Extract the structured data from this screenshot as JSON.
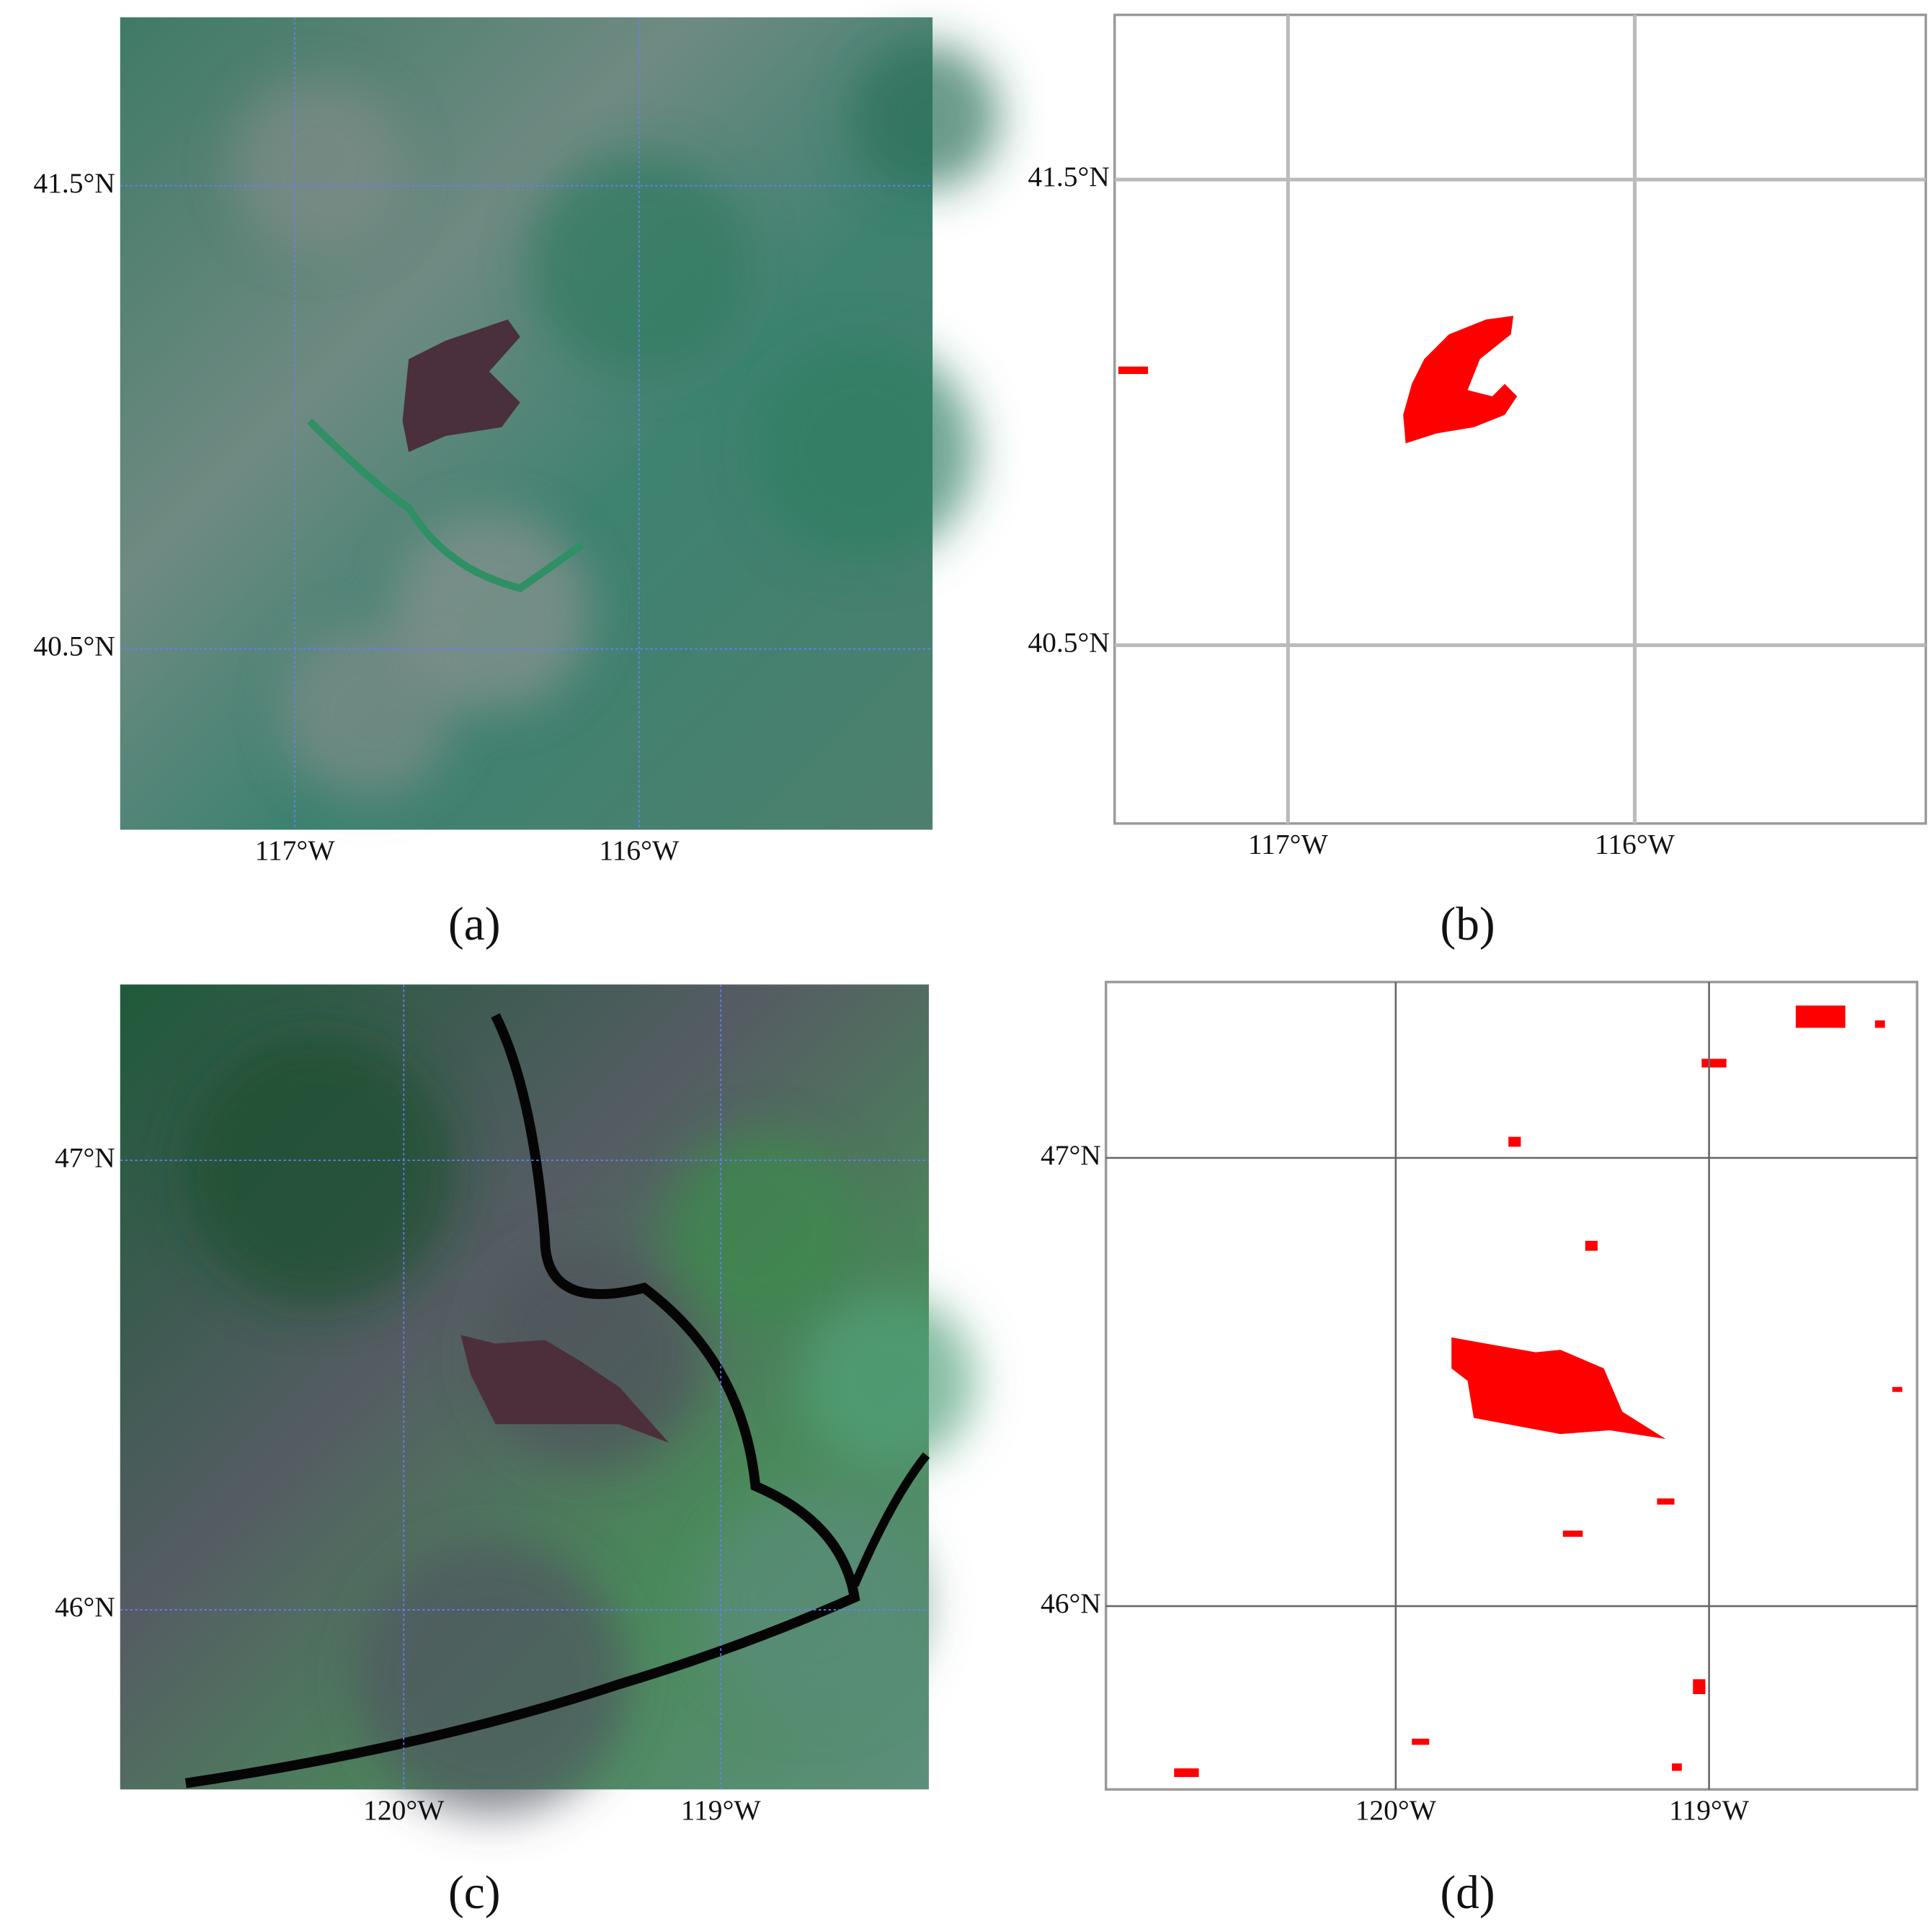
{
  "panels": [
    {
      "label": "(a)",
      "xticks": [
        "117°W",
        "116°W"
      ],
      "yticks": [
        "41.5°N",
        "40.5°N"
      ]
    },
    {
      "label": "(b)",
      "xticks": [
        "117°W",
        "116°W"
      ],
      "yticks": [
        "41.5°N",
        "40.5°N"
      ]
    },
    {
      "label": "(c)",
      "xticks": [
        "120°W",
        "119°W"
      ],
      "yticks": [
        "47°N",
        "46°N"
      ]
    },
    {
      "label": "(d)",
      "xticks": [
        "120°W",
        "119°W"
      ],
      "yticks": [
        "47°N",
        "46°N"
      ]
    }
  ]
}
